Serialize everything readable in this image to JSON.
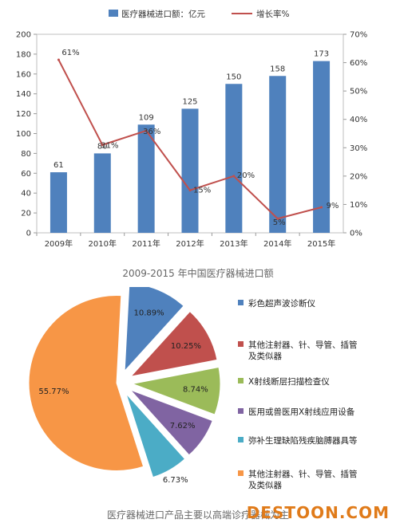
{
  "chart_data": [
    {
      "type": "bar",
      "title": "2009-2015 年中国医疗器械进口额",
      "legend": [
        "医疗器械进口额：亿元",
        "增长率%"
      ],
      "categories": [
        "2009年",
        "2010年",
        "2011年",
        "2012年",
        "2013年",
        "2014年",
        "2015年"
      ],
      "series": [
        {
          "name": "医疗器械进口额：亿元",
          "type": "bar",
          "values": [
            61,
            80,
            109,
            125,
            150,
            158,
            173
          ],
          "labels": [
            "61",
            "80",
            "109",
            "125",
            "150",
            "158",
            "173"
          ]
        },
        {
          "name": "增长率%",
          "type": "line",
          "axis": "right",
          "values": [
            61,
            31,
            36,
            15,
            20,
            5,
            9
          ],
          "labels": [
            "61%",
            "31%",
            "36%",
            "15%",
            "20%",
            "5%",
            "9%"
          ]
        }
      ],
      "ylim": [
        0,
        200
      ],
      "yticks": [
        "0",
        "20",
        "40",
        "60",
        "80",
        "100",
        "120",
        "140",
        "160",
        "180",
        "200"
      ],
      "y2lim": [
        0,
        70
      ],
      "y2ticks": [
        "0%",
        "10%",
        "20%",
        "30%",
        "40%",
        "50%",
        "60%",
        "70%"
      ],
      "grid": false,
      "legend_position": "top",
      "colors": {
        "bar": "#4f81bd",
        "line": "#c0504d"
      }
    },
    {
      "type": "pie",
      "title": "医疗器械进口产品主要以高端诊疗器械为主",
      "slices": [
        {
          "label": "彩色超声波诊断仪",
          "value": 10.89,
          "text": "10.89%",
          "color": "#4f81bd"
        },
        {
          "label": "其他注射器、针、导管、插管及类似器",
          "value": 10.25,
          "text": "10.25%",
          "color": "#c0504d"
        },
        {
          "label": "X射线断层扫描检查仪",
          "value": 8.74,
          "text": "8.74%",
          "color": "#9bbb59"
        },
        {
          "label": "医用或兽医用X射线应用设备",
          "value": 7.62,
          "text": "7.62%",
          "color": "#8064a2"
        },
        {
          "label": "弥补生理缺陷残疾脑膊器具等",
          "value": 6.73,
          "text": "6.73%",
          "color": "#4bacc6"
        },
        {
          "label": "其他注射器、针、导管、插管及类似器",
          "value": 55.77,
          "text": "55.77%",
          "color": "#f79646"
        }
      ],
      "legend_position": "right"
    }
  ],
  "watermark": "DESTOON.COM"
}
